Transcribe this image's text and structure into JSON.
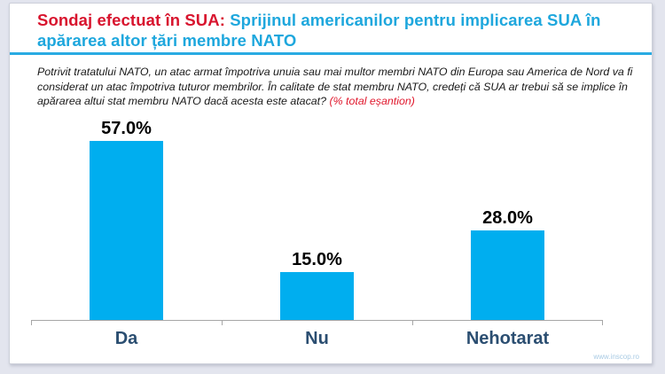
{
  "title": {
    "prefix": "Sondaj efectuat în SUA:",
    "main": " Sprijinul americanilor pentru implicarea SUA în apărarea altor țări membre NATO"
  },
  "subtitle": {
    "question": "Potrivit tratatului NATO, un atac armat împotriva unuia sau mai multor membri NATO din Europa sau America de Nord va fi considerat un atac împotriva tuturor membrilor. În calitate de stat membru NATO, credeți că SUA ar trebui să se implice în apărarea altui stat membru NATO dacă acesta este atacat? ",
    "sample_note": "(% total eșantion)"
  },
  "chart_data": {
    "type": "bar",
    "categories": [
      "Da",
      "Nu",
      "Nehotarat"
    ],
    "values": [
      57.0,
      15.0,
      28.0
    ],
    "value_labels": [
      "57.0%",
      "15.0%",
      "28.0%"
    ],
    "title": "Sondaj efectuat în SUA: Sprijinul americanilor pentru implicarea SUA în apărarea altor țări membre NATO",
    "xlabel": "",
    "ylabel": "",
    "ylim": [
      0,
      63
    ],
    "grid": false,
    "legend": "none",
    "bar_color": "#00aeef",
    "axis_color": "#a6a6a6",
    "data_label_color": "#000000",
    "category_label_color": "#2b4e71"
  },
  "footer": {
    "website": "www.inscop.ro"
  },
  "colors": {
    "title_red": "#d8142e",
    "title_blue": "#1ea7dd",
    "divider_blue": "#29abe2",
    "note_red": "#e0182d",
    "page_background": "#e3e5ee",
    "slide_background": "#ffffff"
  }
}
